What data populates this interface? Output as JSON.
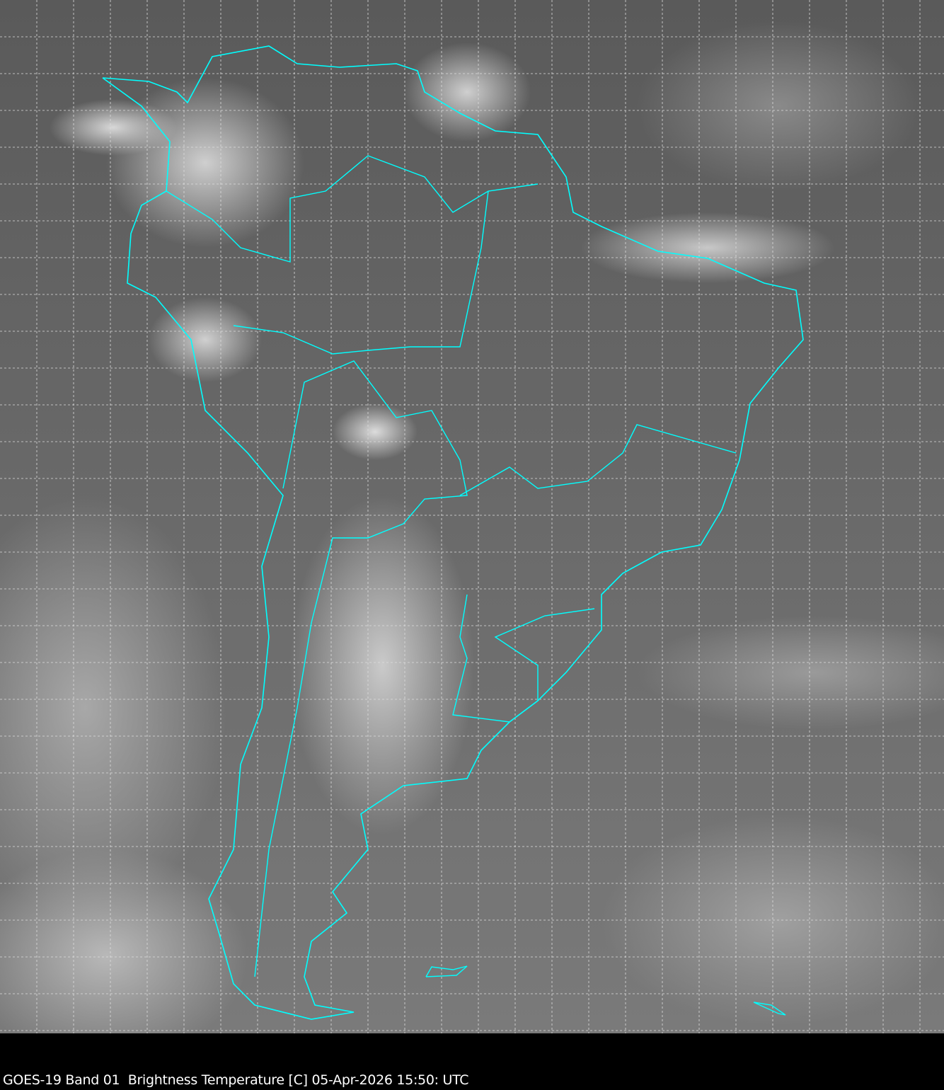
{
  "caption": "GOES-19 Band 01  Brightness Temperature [C] 05-Apr-2026 15:50: UTC",
  "colors": {
    "coastline": "#00ffff",
    "grid": "#dddddd",
    "background": "#000000"
  },
  "map": {
    "region": "South America",
    "graticule": "dashed"
  }
}
